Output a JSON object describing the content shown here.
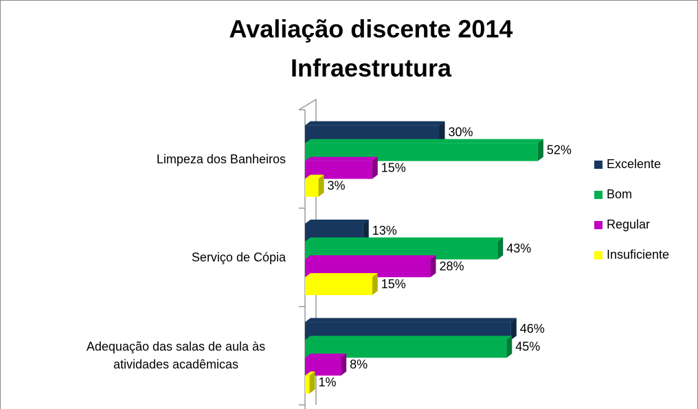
{
  "chart_data": {
    "type": "bar",
    "orientation": "horizontal",
    "title": [
      "Avaliação discente 2014",
      "Infraestrutura"
    ],
    "categories": [
      "Limpeza dos Banheiros",
      "Serviço de Cópia",
      "Adequação das salas de aula às atividades acadêmicas"
    ],
    "series": [
      {
        "name": "Excelente",
        "color": "#17375e",
        "values": [
          30,
          13,
          46
        ],
        "value_labels": [
          "30%",
          "13%",
          "46%"
        ]
      },
      {
        "name": "Bom",
        "color": "#00b050",
        "values": [
          52,
          43,
          45
        ],
        "value_labels": [
          "52%",
          "43%",
          "45%"
        ]
      },
      {
        "name": "Regular",
        "color": "#c000c0",
        "values": [
          15,
          28,
          8
        ],
        "value_labels": [
          "15%",
          "28%",
          "8%"
        ]
      },
      {
        "name": "Insuficiente",
        "color": "#ffff00",
        "values": [
          3,
          15,
          1
        ],
        "value_labels": [
          "3%",
          "15%",
          "1%"
        ]
      }
    ],
    "xlim": [
      0,
      60
    ],
    "legend": "right"
  }
}
